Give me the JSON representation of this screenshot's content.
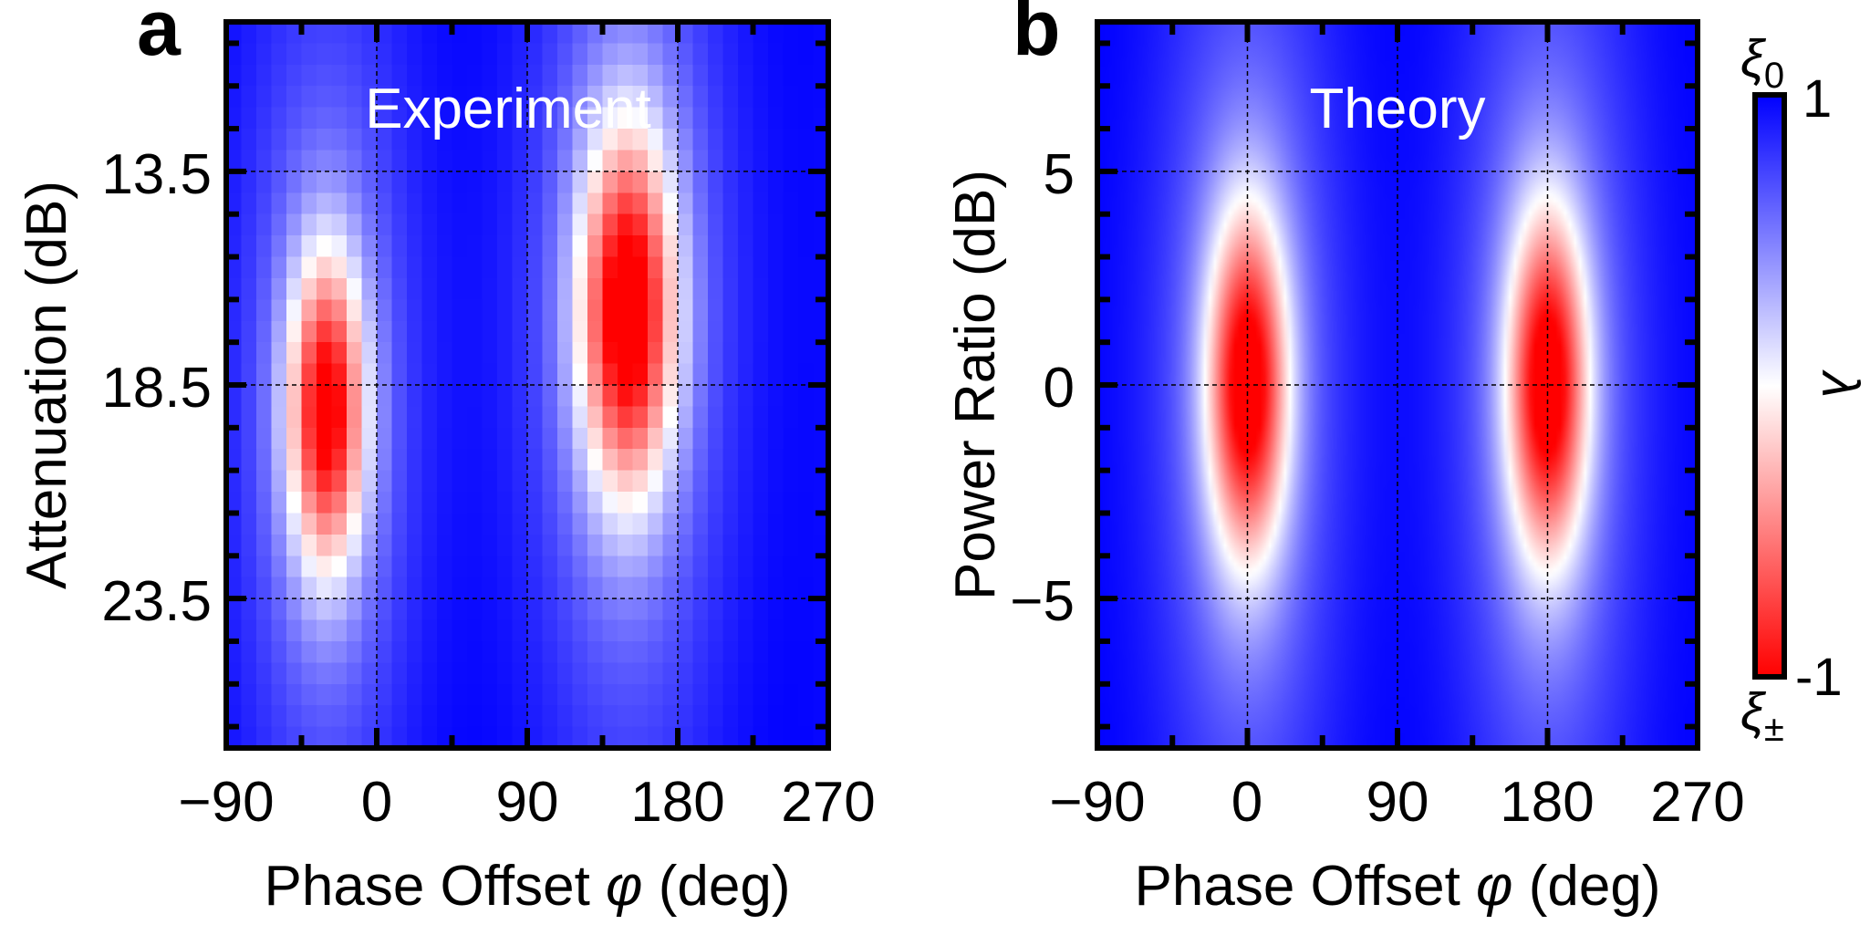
{
  "colors": {
    "positive": "#0000ff",
    "zero": "#ffffff",
    "negative": "#ff0000",
    "grid": "#000000"
  },
  "chart_data": [
    {
      "type": "heatmap",
      "panel_label": "a",
      "title": "Experiment",
      "xlabel_prefix": "Phase Offset ",
      "xlabel_symbol": "φ",
      "xlabel_suffix": " (deg)",
      "ylabel": "Attenuation (dB)",
      "xlim": [
        -90,
        270
      ],
      "xticks": [
        -90,
        0,
        90,
        180,
        270
      ],
      "xtick_labels": [
        "−90",
        "0",
        "90",
        "180",
        "270"
      ],
      "ylim": [
        10,
        27
      ],
      "y_inverted": true,
      "yticks": [
        13.5,
        18.5,
        23.5
      ],
      "ytick_labels": [
        "13.5",
        "18.5",
        "23.5"
      ],
      "grid": true,
      "pixelated": true,
      "features": [
        {
          "phase": -30,
          "level": 19.1,
          "sigma_phase": 16,
          "sigma_level": 2.6,
          "min_value": -0.58
        },
        {
          "phase": 150,
          "level": 16.8,
          "sigma_phase": 20,
          "sigma_level": 3.0,
          "min_value": -0.72
        }
      ],
      "value_range": [
        -1,
        1
      ]
    },
    {
      "type": "heatmap",
      "panel_label": "b",
      "title": "Theory",
      "xlabel_prefix": "Phase Offset ",
      "xlabel_symbol": "φ",
      "xlabel_suffix": " (deg)",
      "ylabel": "Power Ratio (dB)",
      "xlim": [
        -90,
        270
      ],
      "xticks": [
        -90,
        0,
        90,
        180,
        270
      ],
      "xtick_labels": [
        "−90",
        "0",
        "90",
        "180",
        "270"
      ],
      "ylim": [
        -8.5,
        8.5
      ],
      "y_inverted": false,
      "yticks": [
        5,
        0,
        -5
      ],
      "ytick_labels": [
        "5",
        "0",
        "−5"
      ],
      "grid": true,
      "pixelated": false,
      "features": [
        {
          "phase": 0,
          "level": 0,
          "sigma_phase": 17,
          "sigma_level": 2.9,
          "min_value": -0.68
        },
        {
          "phase": 180,
          "level": 0,
          "sigma_phase": 17,
          "sigma_level": 2.9,
          "min_value": -0.68
        }
      ],
      "value_range": [
        -1,
        1
      ]
    }
  ],
  "colorbar": {
    "label": "λ",
    "max_label": "1",
    "min_label": "-1",
    "top_symbol": "ξ",
    "top_subscript": "0",
    "bottom_symbol": "ξ",
    "bottom_subscript": "±"
  }
}
